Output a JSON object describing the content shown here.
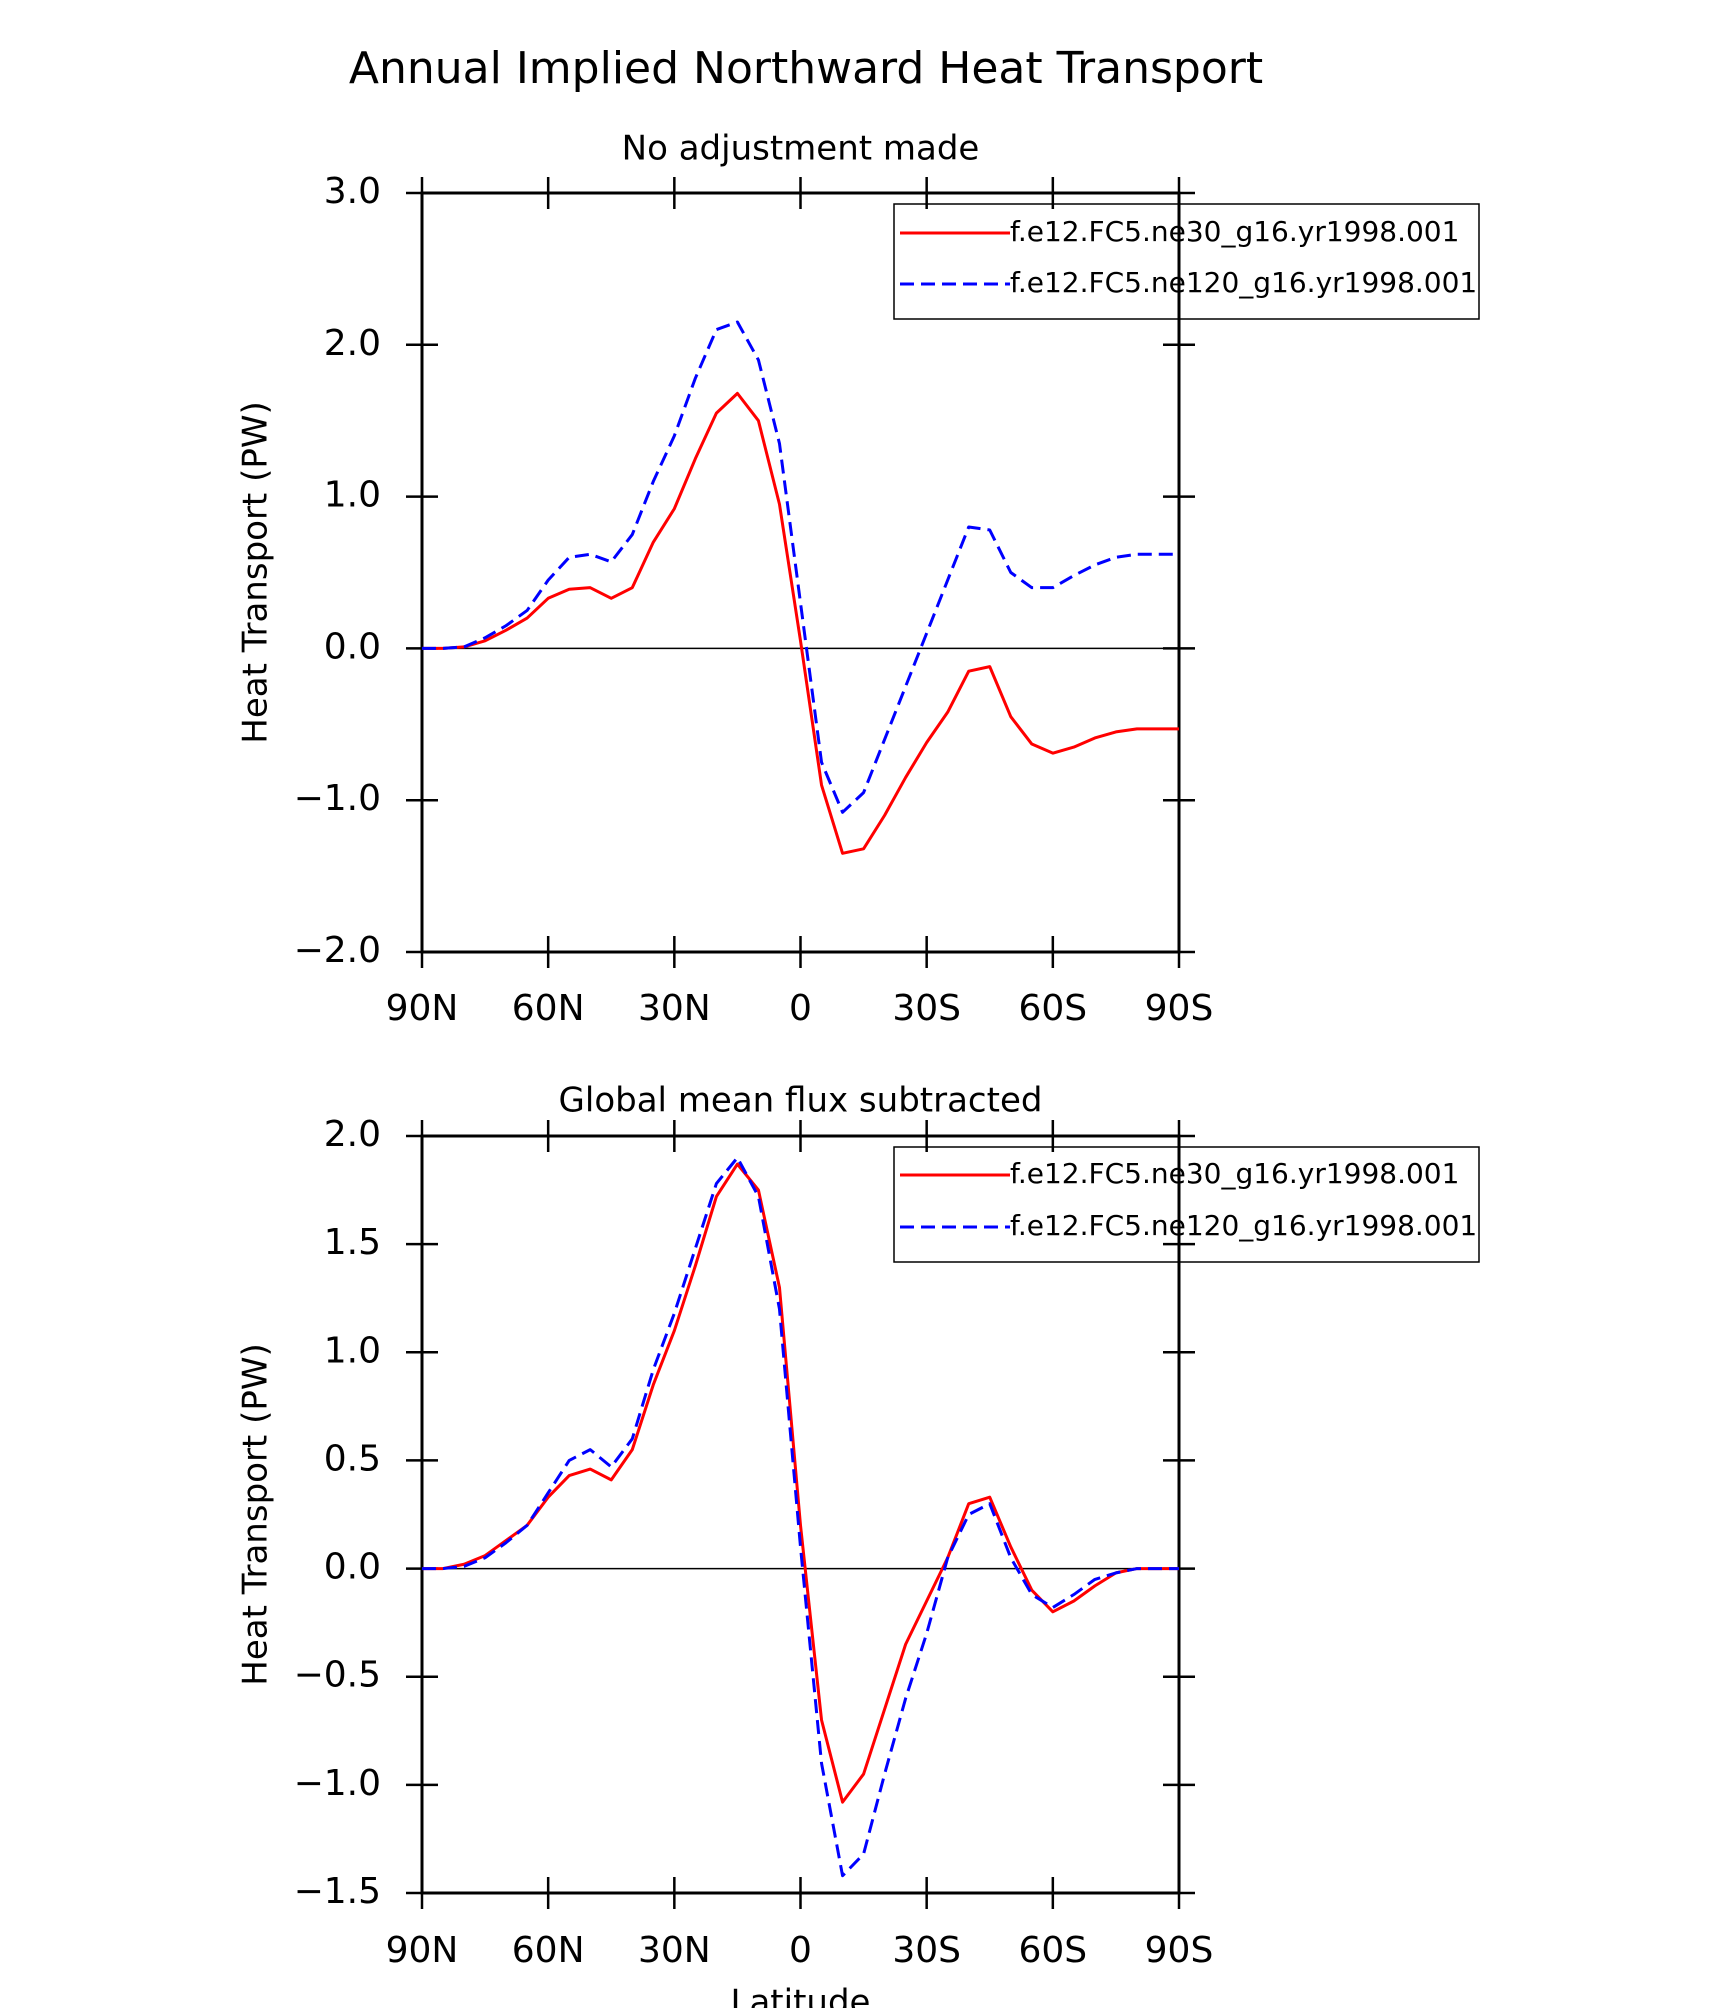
{
  "title": "Annual Implied Northward Heat Transport",
  "chart_data": [
    {
      "type": "line",
      "title": "No adjustment made",
      "ylabel": "Heat Transport (PW)",
      "x": [
        90,
        85,
        80,
        75,
        70,
        65,
        60,
        55,
        50,
        45,
        40,
        35,
        30,
        25,
        20,
        15,
        10,
        5,
        0,
        -5,
        -10,
        -15,
        -20,
        -25,
        -30,
        -35,
        -40,
        -45,
        -50,
        -55,
        -60,
        -65,
        -70,
        -75,
        -80,
        -85,
        -90
      ],
      "series": [
        {
          "name": "f.e12.FC5.ne30_g16.yr1998.001",
          "color": "#ff0000",
          "linestyle": "solid",
          "values": [
            0,
            0,
            0.01,
            0.05,
            0.12,
            0.2,
            0.33,
            0.39,
            0.4,
            0.33,
            0.4,
            0.7,
            0.92,
            1.25,
            1.55,
            1.68,
            1.5,
            0.95,
            0.05,
            -0.9,
            -1.35,
            -1.32,
            -1.1,
            -0.85,
            -0.62,
            -0.42,
            -0.15,
            -0.12,
            -0.45,
            -0.63,
            -0.69,
            -0.65,
            -0.59,
            -0.55,
            -0.53,
            -0.53,
            -0.53
          ]
        },
        {
          "name": "f.e12.FC5.ne120_g16.yr1998.001",
          "color": "#0000ff",
          "linestyle": "dashed",
          "values": [
            0,
            0,
            0.01,
            0.07,
            0.15,
            0.25,
            0.45,
            0.6,
            0.62,
            0.57,
            0.75,
            1.1,
            1.4,
            1.78,
            2.1,
            2.15,
            1.9,
            1.35,
            0.3,
            -0.75,
            -1.08,
            -0.95,
            -0.6,
            -0.25,
            0.1,
            0.45,
            0.8,
            0.78,
            0.5,
            0.4,
            0.4,
            0.48,
            0.55,
            0.6,
            0.62,
            0.62,
            0.62
          ]
        }
      ],
      "xlim": [
        90,
        -90
      ],
      "xticks": [
        {
          "value": 90,
          "label": "90N"
        },
        {
          "value": 60,
          "label": "60N"
        },
        {
          "value": 30,
          "label": "30N"
        },
        0,
        {
          "value": -30,
          "label": "30S"
        },
        {
          "value": -60,
          "label": "60S"
        },
        {
          "value": -90,
          "label": "90S"
        }
      ],
      "ylim": [
        -2,
        3
      ],
      "yticks": [
        {
          "value": 3,
          "label": "3.0"
        },
        {
          "value": 2,
          "label": "2.0"
        },
        {
          "value": 1,
          "label": "1.0"
        },
        {
          "value": 0,
          "label": "0.0"
        },
        {
          "value": -1,
          "label": "−1.0"
        },
        {
          "value": -2,
          "label": "−2.0"
        }
      ],
      "grid": false,
      "zero_line": true,
      "legend": "upper right"
    },
    {
      "type": "line",
      "title": "Global mean flux subtracted",
      "ylabel": "Heat Transport (PW)",
      "xlabel": "Latitude",
      "x": [
        90,
        85,
        80,
        75,
        70,
        65,
        60,
        55,
        50,
        45,
        40,
        35,
        30,
        25,
        20,
        15,
        10,
        5,
        0,
        -5,
        -10,
        -15,
        -20,
        -25,
        -30,
        -35,
        -40,
        -45,
        -50,
        -55,
        -60,
        -65,
        -70,
        -75,
        -80,
        -85,
        -90
      ],
      "series": [
        {
          "name": "f.e12.FC5.ne30_g16.yr1998.001",
          "color": "#ff0000",
          "linestyle": "solid",
          "values": [
            0,
            0,
            0.02,
            0.06,
            0.13,
            0.2,
            0.33,
            0.43,
            0.46,
            0.41,
            0.55,
            0.85,
            1.1,
            1.4,
            1.72,
            1.87,
            1.75,
            1.3,
            0.2,
            -0.7,
            -1.08,
            -0.95,
            -0.65,
            -0.35,
            -0.15,
            0.05,
            0.3,
            0.33,
            0.1,
            -0.1,
            -0.2,
            -0.15,
            -0.08,
            -0.02,
            0,
            0,
            0
          ]
        },
        {
          "name": "f.e12.FC5.ne120_g16.yr1998.001",
          "color": "#0000ff",
          "linestyle": "dashed",
          "values": [
            0,
            0,
            0.01,
            0.05,
            0.12,
            0.2,
            0.35,
            0.5,
            0.55,
            0.47,
            0.6,
            0.92,
            1.18,
            1.48,
            1.78,
            1.9,
            1.72,
            1.2,
            0.1,
            -0.9,
            -1.42,
            -1.32,
            -0.95,
            -0.6,
            -0.3,
            0.05,
            0.25,
            0.3,
            0.05,
            -0.12,
            -0.18,
            -0.12,
            -0.05,
            -0.02,
            0,
            0,
            0
          ]
        }
      ],
      "xlim": [
        90,
        -90
      ],
      "xticks": [
        {
          "value": 90,
          "label": "90N"
        },
        {
          "value": 60,
          "label": "60N"
        },
        {
          "value": 30,
          "label": "30N"
        },
        0,
        {
          "value": -30,
          "label": "30S"
        },
        {
          "value": -60,
          "label": "60S"
        },
        {
          "value": -90,
          "label": "90S"
        }
      ],
      "ylim": [
        -1.5,
        2
      ],
      "yticks": [
        {
          "value": 2,
          "label": "2.0"
        },
        {
          "value": 1.5,
          "label": "1.5"
        },
        {
          "value": 1,
          "label": "1.0"
        },
        {
          "value": 0.5,
          "label": "0.5"
        },
        {
          "value": 0,
          "label": "0.0"
        },
        {
          "value": -0.5,
          "label": "−0.5"
        },
        {
          "value": -1,
          "label": "−1.0"
        },
        {
          "value": -1.5,
          "label": "−1.5"
        }
      ],
      "grid": false,
      "zero_line": true,
      "legend": "upper right"
    }
  ]
}
